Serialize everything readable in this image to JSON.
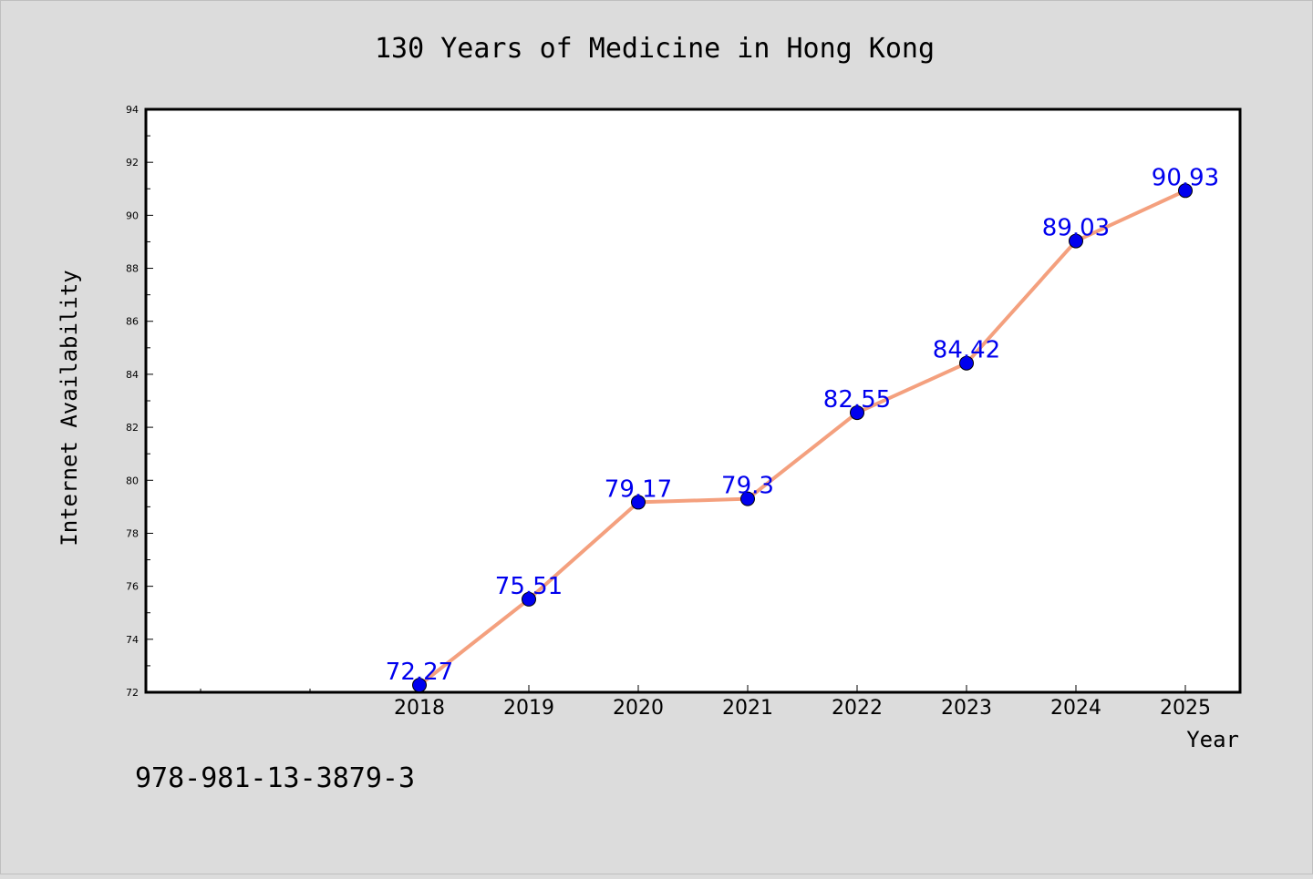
{
  "chart_data": {
    "type": "line",
    "title": "130 Years of Medicine in Hong Kong",
    "xlabel": "Year",
    "ylabel": "Internet Availability",
    "categories": [
      "2018",
      "2019",
      "2020",
      "2021",
      "2022",
      "2023",
      "2024",
      "2025"
    ],
    "series": [
      {
        "values": [
          72.27,
          75.51,
          79.17,
          79.3,
          82.55,
          84.42,
          89.03,
          90.93
        ],
        "line_color": "#f4a07e",
        "marker_color": "#0000ee",
        "label_color": "#0000ee"
      }
    ],
    "data_labels": [
      "72.27",
      "75.51",
      "79.17",
      "79.3",
      "82.55",
      "84.42",
      "89.03",
      "90.93"
    ],
    "ylim": [
      72,
      94
    ],
    "yticks": [
      72,
      74,
      76,
      78,
      80,
      82,
      84,
      86,
      88,
      90,
      92,
      94
    ],
    "ytick_labels": [
      "72",
      "74",
      "76",
      "78",
      "80",
      "82",
      "84",
      "86",
      "88",
      "90",
      "92",
      "94"
    ],
    "grid": false,
    "legend": "none"
  },
  "footnote": "978-981-13-3879-3",
  "colors": {
    "background": "#dcdcdc",
    "plot_background": "#ffffff"
  }
}
